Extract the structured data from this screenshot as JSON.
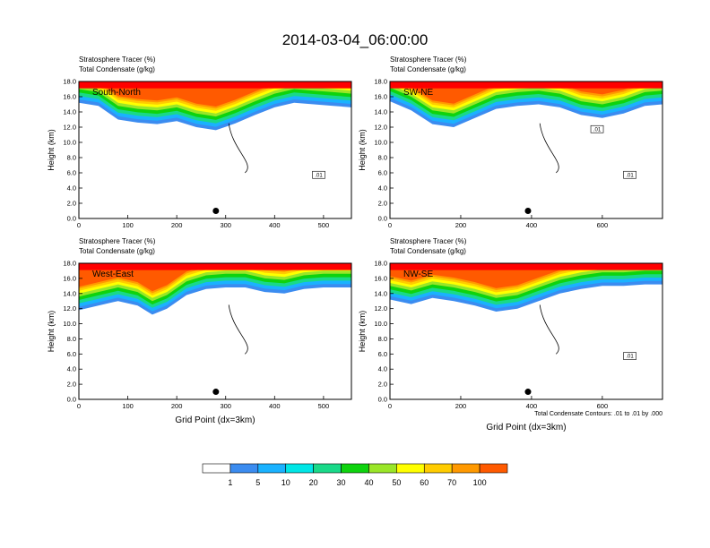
{
  "figure_title": "2014-03-04_06:00:00",
  "footnote": "Total Condensate Contours: .01 to .01 by .000",
  "chart_data": [
    {
      "type": "heatmap",
      "panel": "South-North",
      "subtitle_line1": "Stratosphere Tracer   (%)",
      "subtitle_line2": "Total Condensate   (g/kg)",
      "ylabel": "Height (km)",
      "xlabel": "",
      "xlim": [
        0,
        557
      ],
      "ylim": [
        0,
        18
      ],
      "xticks": [
        0,
        100,
        200,
        300,
        400,
        500
      ],
      "xtick_labels": [
        "0",
        "100",
        "200",
        "300",
        "400",
        "500"
      ],
      "yticks": [
        0,
        2,
        4,
        6,
        8,
        10,
        12,
        14,
        16,
        18
      ],
      "ytick_labels": [
        "0.0",
        "2.0",
        "4.0",
        "6.0",
        "8.0",
        "10.0",
        "12.0",
        "14.0",
        "16.0",
        "18.0"
      ],
      "marker_x": 280,
      "marker_y": 1.0,
      "contour_labels": [
        ".01"
      ],
      "tracer_profile": [
        {
          "x": 0,
          "bottom": 15.2
        },
        {
          "x": 40,
          "bottom": 14.8
        },
        {
          "x": 80,
          "bottom": 13.0
        },
        {
          "x": 120,
          "bottom": 12.6
        },
        {
          "x": 160,
          "bottom": 12.4
        },
        {
          "x": 200,
          "bottom": 12.8
        },
        {
          "x": 240,
          "bottom": 12.0
        },
        {
          "x": 280,
          "bottom": 11.6
        },
        {
          "x": 320,
          "bottom": 12.5
        },
        {
          "x": 360,
          "bottom": 13.6
        },
        {
          "x": 400,
          "bottom": 14.6
        },
        {
          "x": 440,
          "bottom": 15.2
        },
        {
          "x": 480,
          "bottom": 15.0
        },
        {
          "x": 520,
          "bottom": 14.8
        },
        {
          "x": 557,
          "bottom": 14.6
        }
      ]
    },
    {
      "type": "heatmap",
      "panel": "SW-NE",
      "subtitle_line1": "Stratosphere Tracer   (%)",
      "subtitle_line2": "Total Condensate   (g/kg)",
      "ylabel": "Height (km)",
      "xlabel": "",
      "xlim": [
        0,
        770
      ],
      "ylim": [
        0,
        18
      ],
      "xticks": [
        0,
        200,
        400,
        600
      ],
      "xtick_labels": [
        "0",
        "200",
        "400",
        "600"
      ],
      "yticks": [
        0,
        2,
        4,
        6,
        8,
        10,
        12,
        14,
        16,
        18
      ],
      "ytick_labels": [
        "0.0",
        "2.0",
        "4.0",
        "6.0",
        "8.0",
        "10.0",
        "12.0",
        "14.0",
        "16.0",
        "18.0"
      ],
      "marker_x": 390,
      "marker_y": 1.0,
      "contour_labels": [
        ".01",
        ".01"
      ],
      "tracer_profile": [
        {
          "x": 0,
          "bottom": 15.4
        },
        {
          "x": 60,
          "bottom": 14.2
        },
        {
          "x": 120,
          "bottom": 12.4
        },
        {
          "x": 180,
          "bottom": 12.0
        },
        {
          "x": 240,
          "bottom": 13.2
        },
        {
          "x": 300,
          "bottom": 14.4
        },
        {
          "x": 360,
          "bottom": 14.8
        },
        {
          "x": 420,
          "bottom": 15.0
        },
        {
          "x": 480,
          "bottom": 14.6
        },
        {
          "x": 540,
          "bottom": 13.6
        },
        {
          "x": 600,
          "bottom": 13.2
        },
        {
          "x": 660,
          "bottom": 13.8
        },
        {
          "x": 720,
          "bottom": 14.8
        },
        {
          "x": 770,
          "bottom": 15.0
        }
      ]
    },
    {
      "type": "heatmap",
      "panel": "West-East",
      "subtitle_line1": "Stratosphere Tracer   (%)",
      "subtitle_line2": "Total Condensate   (g/kg)",
      "ylabel": "Height (km)",
      "xlabel": "Grid Point (dx=3km)",
      "xlim": [
        0,
        557
      ],
      "ylim": [
        0,
        18
      ],
      "xticks": [
        0,
        100,
        200,
        300,
        400,
        500
      ],
      "xtick_labels": [
        "0",
        "100",
        "200",
        "300",
        "400",
        "500"
      ],
      "yticks": [
        0,
        2,
        4,
        6,
        8,
        10,
        12,
        14,
        16,
        18
      ],
      "ytick_labels": [
        "0.0",
        "2.0",
        "4.0",
        "6.0",
        "8.0",
        "10.0",
        "12.0",
        "14.0",
        "16.0",
        "18.0"
      ],
      "marker_x": 280,
      "marker_y": 1.0,
      "contour_labels": [],
      "tracer_profile": [
        {
          "x": 0,
          "bottom": 11.8
        },
        {
          "x": 40,
          "bottom": 12.4
        },
        {
          "x": 80,
          "bottom": 13.0
        },
        {
          "x": 120,
          "bottom": 12.4
        },
        {
          "x": 150,
          "bottom": 11.2
        },
        {
          "x": 180,
          "bottom": 12.0
        },
        {
          "x": 220,
          "bottom": 13.8
        },
        {
          "x": 260,
          "bottom": 14.6
        },
        {
          "x": 300,
          "bottom": 14.8
        },
        {
          "x": 340,
          "bottom": 14.8
        },
        {
          "x": 380,
          "bottom": 14.2
        },
        {
          "x": 420,
          "bottom": 14.0
        },
        {
          "x": 460,
          "bottom": 14.6
        },
        {
          "x": 500,
          "bottom": 14.8
        },
        {
          "x": 557,
          "bottom": 14.8
        }
      ]
    },
    {
      "type": "heatmap",
      "panel": "NW-SE",
      "subtitle_line1": "Stratosphere Tracer   (%)",
      "subtitle_line2": "Total Condensate   (g/kg)",
      "ylabel": "Height (km)",
      "xlabel": "Grid Point (dx=3km)",
      "xlim": [
        0,
        770
      ],
      "ylim": [
        0,
        18
      ],
      "xticks": [
        0,
        200,
        400,
        600
      ],
      "xtick_labels": [
        "0",
        "200",
        "400",
        "600"
      ],
      "yticks": [
        0,
        2,
        4,
        6,
        8,
        10,
        12,
        14,
        16,
        18
      ],
      "ytick_labels": [
        "0.0",
        "2.0",
        "4.0",
        "6.0",
        "8.0",
        "10.0",
        "12.0",
        "14.0",
        "16.0",
        "18.0"
      ],
      "marker_x": 390,
      "marker_y": 1.0,
      "contour_labels": [
        ".01"
      ],
      "tracer_profile": [
        {
          "x": 0,
          "bottom": 13.2
        },
        {
          "x": 60,
          "bottom": 12.6
        },
        {
          "x": 120,
          "bottom": 13.4
        },
        {
          "x": 180,
          "bottom": 13.0
        },
        {
          "x": 240,
          "bottom": 12.4
        },
        {
          "x": 300,
          "bottom": 11.6
        },
        {
          "x": 360,
          "bottom": 12.0
        },
        {
          "x": 420,
          "bottom": 13.0
        },
        {
          "x": 480,
          "bottom": 14.0
        },
        {
          "x": 540,
          "bottom": 14.6
        },
        {
          "x": 600,
          "bottom": 15.0
        },
        {
          "x": 660,
          "bottom": 15.0
        },
        {
          "x": 720,
          "bottom": 15.2
        },
        {
          "x": 770,
          "bottom": 15.2
        }
      ]
    }
  ],
  "colorbar": {
    "levels": [
      "1",
      "5",
      "10",
      "20",
      "30",
      "40",
      "50",
      "60",
      "70",
      "100"
    ],
    "colors": [
      "#ffffff",
      "#3b8cf0",
      "#1ab2ff",
      "#00e6e6",
      "#19d989",
      "#0ed30e",
      "#9ae628",
      "#ffff00",
      "#ffcc00",
      "#ff9900",
      "#ff5a00",
      "#ff0000"
    ]
  }
}
